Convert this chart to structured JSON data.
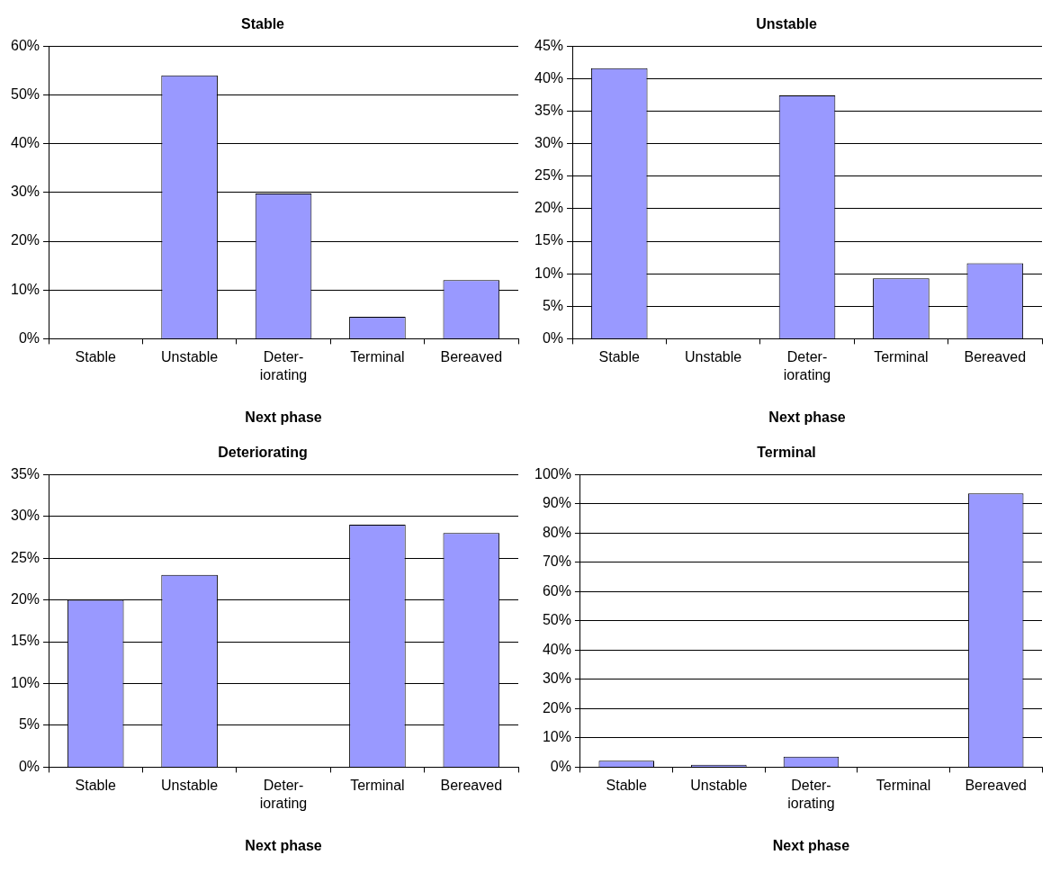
{
  "chart_data": [
    {
      "type": "bar",
      "title": "Stable",
      "xlabel": "Next phase",
      "categories": [
        "Stable",
        "Unstable",
        "Deter-iorating",
        "Terminal",
        "Bereaved"
      ],
      "values": [
        0,
        54,
        29.8,
        4.5,
        12
      ],
      "color": "#9999ff",
      "ylim": [
        0,
        60
      ],
      "yticks": [
        {
          "value": 0,
          "label": "0%"
        },
        {
          "value": 10,
          "label": "10%"
        },
        {
          "value": 20,
          "label": "20%"
        },
        {
          "value": 30,
          "label": "30%"
        },
        {
          "value": 40,
          "label": "40%"
        },
        {
          "value": 50,
          "label": "50%"
        },
        {
          "value": 60,
          "label": "60%"
        }
      ],
      "grid": "y",
      "legend": false
    },
    {
      "type": "bar",
      "title": "Unstable",
      "xlabel": "Next phase",
      "categories": [
        "Stable",
        "Unstable",
        "Deter-iorating",
        "Terminal",
        "Bereaved"
      ],
      "values": [
        41.6,
        0,
        37.4,
        9.3,
        11.6
      ],
      "color": "#9999ff",
      "ylim": [
        0,
        45
      ],
      "yticks": [
        {
          "value": 0,
          "label": "0%"
        },
        {
          "value": 5,
          "label": "5%"
        },
        {
          "value": 10,
          "label": "10%"
        },
        {
          "value": 15,
          "label": "15%"
        },
        {
          "value": 20,
          "label": "20%"
        },
        {
          "value": 25,
          "label": "25%"
        },
        {
          "value": 30,
          "label": "30%"
        },
        {
          "value": 35,
          "label": "35%"
        },
        {
          "value": 40,
          "label": "40%"
        },
        {
          "value": 45,
          "label": "45%"
        }
      ],
      "grid": "y",
      "legend": false
    },
    {
      "type": "bar",
      "title": "Deteriorating",
      "xlabel": "Next phase",
      "categories": [
        "Stable",
        "Unstable",
        "Deter-iorating",
        "Terminal",
        "Bereaved"
      ],
      "values": [
        20,
        23,
        0,
        29,
        28
      ],
      "color": "#9999ff",
      "ylim": [
        0,
        35
      ],
      "yticks": [
        {
          "value": 0,
          "label": "0%"
        },
        {
          "value": 5,
          "label": "5%"
        },
        {
          "value": 10,
          "label": "10%"
        },
        {
          "value": 15,
          "label": "15%"
        },
        {
          "value": 20,
          "label": "20%"
        },
        {
          "value": 25,
          "label": "25%"
        },
        {
          "value": 30,
          "label": "30%"
        },
        {
          "value": 35,
          "label": "35%"
        }
      ],
      "grid": "y",
      "legend": false
    },
    {
      "type": "bar",
      "title": "Terminal",
      "xlabel": "Next phase",
      "categories": [
        "Stable",
        "Unstable",
        "Deter-iorating",
        "Terminal",
        "Bereaved"
      ],
      "values": [
        2.2,
        0.8,
        3.6,
        0,
        93.5
      ],
      "color": "#9999ff",
      "ylim": [
        0,
        100
      ],
      "yticks": [
        {
          "value": 0,
          "label": "0%"
        },
        {
          "value": 10,
          "label": "10%"
        },
        {
          "value": 20,
          "label": "20%"
        },
        {
          "value": 30,
          "label": "30%"
        },
        {
          "value": 40,
          "label": "40%"
        },
        {
          "value": 50,
          "label": "50%"
        },
        {
          "value": 60,
          "label": "60%"
        },
        {
          "value": 70,
          "label": "70%"
        },
        {
          "value": 80,
          "label": "80%"
        },
        {
          "value": 90,
          "label": "90%"
        },
        {
          "value": 100,
          "label": "100%"
        }
      ],
      "grid": "y",
      "legend": false
    }
  ]
}
